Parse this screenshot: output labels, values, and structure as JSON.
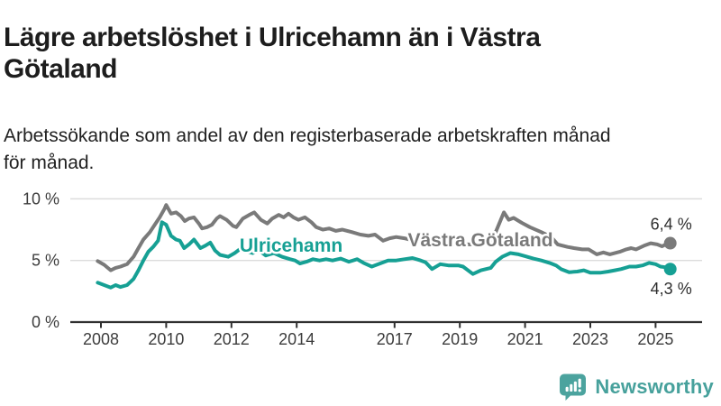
{
  "header": {
    "title": "Lägre arbetslöshet i Ulricehamn än i Västra Götaland",
    "title_lines": [
      "Lägre arbetslöshet i Ulricehamn än i Västra",
      "Götaland"
    ],
    "subtitle": "Arbetssökande som andel av den registerbaserade arbetskraften månad för månad.",
    "subtitle_lines": [
      "Arbetssökande som andel av den registerbaserade arbetskraften månad",
      "för månad."
    ]
  },
  "footer": {
    "brand": "Newsworthy",
    "logo_icon": "bar-chart-speech-bubble-icon"
  },
  "colors": {
    "ulricehamn": "#16a094",
    "vastra_gotaland": "#7a7a7a",
    "axis_line": "#2f2f2f",
    "grid_line": "#dcdcdc",
    "axis_text": "#3d3d3d",
    "value_text": "#2e2e2e",
    "title_text": "#1d1d1d",
    "brand_teal": "#47a19c"
  },
  "chart_data": {
    "type": "line",
    "unit": "%",
    "grid": true,
    "x_axis": {
      "ticks": [
        2008,
        2010,
        2012,
        2014,
        2017,
        2019,
        2021,
        2023,
        2025
      ],
      "range": [
        2007.85,
        2025.6
      ]
    },
    "y_axis": {
      "ticks": [
        {
          "value": 0,
          "label": "0 %"
        },
        {
          "value": 5,
          "label": "5 %"
        },
        {
          "value": 10,
          "label": "10 %"
        }
      ],
      "range": [
        0,
        10.8
      ]
    },
    "series": [
      {
        "name": "Västra Götaland",
        "color": "#7a7a7a",
        "end_value": 6.4,
        "end_label": "6,4 %",
        "end_label_position": "above",
        "label_anchor": {
          "x": 2019.63,
          "y": 6.66
        },
        "points": [
          [
            2007.9,
            4.95
          ],
          [
            2008.1,
            4.65
          ],
          [
            2008.3,
            4.2
          ],
          [
            2008.45,
            4.4
          ],
          [
            2008.6,
            4.5
          ],
          [
            2008.8,
            4.7
          ],
          [
            2009.0,
            5.3
          ],
          [
            2009.15,
            6.0
          ],
          [
            2009.3,
            6.7
          ],
          [
            2009.5,
            7.3
          ],
          [
            2009.65,
            7.9
          ],
          [
            2009.8,
            8.5
          ],
          [
            2009.95,
            9.2
          ],
          [
            2010.0,
            9.5
          ],
          [
            2010.15,
            8.8
          ],
          [
            2010.3,
            8.9
          ],
          [
            2010.45,
            8.6
          ],
          [
            2010.57,
            8.2
          ],
          [
            2010.7,
            8.4
          ],
          [
            2010.85,
            8.5
          ],
          [
            2011.0,
            8.0
          ],
          [
            2011.1,
            7.6
          ],
          [
            2011.25,
            7.7
          ],
          [
            2011.4,
            7.9
          ],
          [
            2011.55,
            8.4
          ],
          [
            2011.65,
            8.6
          ],
          [
            2011.85,
            8.3
          ],
          [
            2012.05,
            7.8
          ],
          [
            2012.15,
            7.7
          ],
          [
            2012.35,
            8.4
          ],
          [
            2012.55,
            8.7
          ],
          [
            2012.7,
            8.9
          ],
          [
            2012.9,
            8.3
          ],
          [
            2013.1,
            8.0
          ],
          [
            2013.25,
            8.4
          ],
          [
            2013.45,
            8.7
          ],
          [
            2013.6,
            8.5
          ],
          [
            2013.75,
            8.8
          ],
          [
            2013.9,
            8.5
          ],
          [
            2014.05,
            8.3
          ],
          [
            2014.25,
            8.5
          ],
          [
            2014.45,
            8.1
          ],
          [
            2014.6,
            7.7
          ],
          [
            2014.8,
            7.5
          ],
          [
            2015.0,
            7.6
          ],
          [
            2015.2,
            7.4
          ],
          [
            2015.4,
            7.5
          ],
          [
            2015.7,
            7.3
          ],
          [
            2015.95,
            7.1
          ],
          [
            2016.2,
            7.0
          ],
          [
            2016.4,
            7.1
          ],
          [
            2016.65,
            6.6
          ],
          [
            2016.85,
            6.8
          ],
          [
            2017.05,
            6.9
          ],
          [
            2017.3,
            6.8
          ],
          [
            2017.6,
            6.6
          ],
          [
            2017.8,
            6.7
          ],
          [
            2018.05,
            6.6
          ],
          [
            2018.3,
            6.5
          ],
          [
            2018.6,
            6.4
          ],
          [
            2018.9,
            6.3
          ],
          [
            2019.2,
            6.3
          ],
          [
            2019.5,
            6.3
          ],
          [
            2019.8,
            6.4
          ],
          [
            2019.95,
            6.6
          ],
          [
            2020.1,
            7.3
          ],
          [
            2020.35,
            8.9
          ],
          [
            2020.5,
            8.3
          ],
          [
            2020.65,
            8.45
          ],
          [
            2020.9,
            8.05
          ],
          [
            2021.15,
            7.7
          ],
          [
            2021.5,
            7.3
          ],
          [
            2021.8,
            6.9
          ],
          [
            2022.0,
            6.3
          ],
          [
            2022.3,
            6.1
          ],
          [
            2022.5,
            6.0
          ],
          [
            2022.75,
            5.9
          ],
          [
            2022.95,
            5.9
          ],
          [
            2023.2,
            5.5
          ],
          [
            2023.4,
            5.65
          ],
          [
            2023.6,
            5.5
          ],
          [
            2023.9,
            5.7
          ],
          [
            2024.1,
            5.9
          ],
          [
            2024.25,
            6.0
          ],
          [
            2024.4,
            5.9
          ],
          [
            2024.65,
            6.2
          ],
          [
            2024.85,
            6.4
          ],
          [
            2025.05,
            6.3
          ],
          [
            2025.2,
            6.15
          ],
          [
            2025.35,
            6.35
          ],
          [
            2025.45,
            6.4
          ]
        ]
      },
      {
        "name": "Ulricehamn",
        "color": "#16a094",
        "end_value": 4.3,
        "end_label": "4,3 %",
        "end_label_position": "below",
        "label_anchor": {
          "x": 2013.83,
          "y": 6.22
        },
        "points": [
          [
            2007.9,
            3.2
          ],
          [
            2008.1,
            3.0
          ],
          [
            2008.3,
            2.8
          ],
          [
            2008.45,
            3.0
          ],
          [
            2008.6,
            2.85
          ],
          [
            2008.8,
            3.0
          ],
          [
            2009.0,
            3.5
          ],
          [
            2009.15,
            4.2
          ],
          [
            2009.3,
            5.0
          ],
          [
            2009.45,
            5.7
          ],
          [
            2009.6,
            6.1
          ],
          [
            2009.75,
            6.6
          ],
          [
            2009.87,
            8.1
          ],
          [
            2010.0,
            7.9
          ],
          [
            2010.15,
            7.0
          ],
          [
            2010.3,
            6.7
          ],
          [
            2010.42,
            6.6
          ],
          [
            2010.55,
            6.0
          ],
          [
            2010.7,
            6.3
          ],
          [
            2010.85,
            6.7
          ],
          [
            2011.05,
            6.0
          ],
          [
            2011.2,
            6.2
          ],
          [
            2011.35,
            6.45
          ],
          [
            2011.5,
            5.8
          ],
          [
            2011.65,
            5.45
          ],
          [
            2011.9,
            5.3
          ],
          [
            2012.1,
            5.6
          ],
          [
            2012.25,
            5.9
          ],
          [
            2012.45,
            5.75
          ],
          [
            2012.65,
            5.6
          ],
          [
            2012.85,
            5.8
          ],
          [
            2013.05,
            5.4
          ],
          [
            2013.3,
            5.6
          ],
          [
            2013.55,
            5.3
          ],
          [
            2013.8,
            5.1
          ],
          [
            2013.95,
            5.0
          ],
          [
            2014.1,
            4.75
          ],
          [
            2014.3,
            4.9
          ],
          [
            2014.5,
            5.1
          ],
          [
            2014.7,
            5.0
          ],
          [
            2014.9,
            5.1
          ],
          [
            2015.1,
            5.0
          ],
          [
            2015.35,
            5.15
          ],
          [
            2015.6,
            4.9
          ],
          [
            2015.85,
            5.1
          ],
          [
            2016.05,
            4.8
          ],
          [
            2016.3,
            4.5
          ],
          [
            2016.55,
            4.75
          ],
          [
            2016.8,
            5.0
          ],
          [
            2017.05,
            5.0
          ],
          [
            2017.3,
            5.1
          ],
          [
            2017.55,
            5.2
          ],
          [
            2017.8,
            5.0
          ],
          [
            2017.95,
            4.85
          ],
          [
            2018.15,
            4.3
          ],
          [
            2018.4,
            4.7
          ],
          [
            2018.65,
            4.6
          ],
          [
            2018.95,
            4.6
          ],
          [
            2019.1,
            4.5
          ],
          [
            2019.4,
            3.9
          ],
          [
            2019.65,
            4.2
          ],
          [
            2019.95,
            4.4
          ],
          [
            2020.1,
            4.9
          ],
          [
            2020.3,
            5.3
          ],
          [
            2020.55,
            5.6
          ],
          [
            2020.8,
            5.5
          ],
          [
            2021.0,
            5.35
          ],
          [
            2021.25,
            5.15
          ],
          [
            2021.5,
            5.0
          ],
          [
            2021.75,
            4.8
          ],
          [
            2021.95,
            4.6
          ],
          [
            2022.1,
            4.3
          ],
          [
            2022.35,
            4.05
          ],
          [
            2022.6,
            4.1
          ],
          [
            2022.8,
            4.2
          ],
          [
            2023.0,
            4.0
          ],
          [
            2023.3,
            4.0
          ],
          [
            2023.55,
            4.1
          ],
          [
            2023.75,
            4.2
          ],
          [
            2023.95,
            4.3
          ],
          [
            2024.2,
            4.5
          ],
          [
            2024.4,
            4.5
          ],
          [
            2024.6,
            4.6
          ],
          [
            2024.8,
            4.8
          ],
          [
            2025.0,
            4.7
          ],
          [
            2025.15,
            4.5
          ],
          [
            2025.3,
            4.45
          ],
          [
            2025.45,
            4.3
          ]
        ]
      }
    ]
  }
}
